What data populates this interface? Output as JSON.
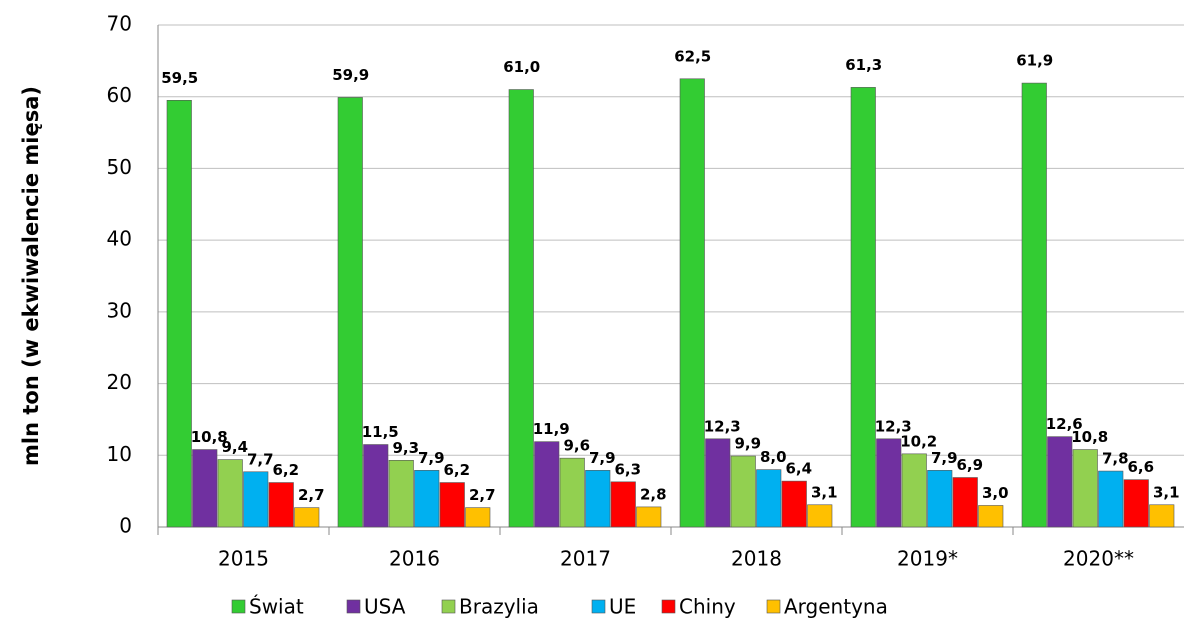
{
  "chart_data": {
    "type": "bar",
    "y_label": "mln ton (w ekwiwalencie mięsa)",
    "categories": [
      "2015",
      "2016",
      "2017",
      "2018",
      "2019*",
      "2020**"
    ],
    "series": [
      {
        "name": "Świat",
        "color": "#33cc33",
        "values": [
          59.5,
          59.9,
          61.0,
          62.5,
          61.3,
          61.9
        ],
        "value_labels": [
          "59,5",
          "59,9",
          "61,0",
          "62,5",
          "61,3",
          "61,9"
        ]
      },
      {
        "name": "USA",
        "color": "#7030a0",
        "values": [
          10.8,
          11.5,
          11.9,
          12.3,
          12.3,
          12.6
        ],
        "value_labels": [
          "10,8",
          "11,5",
          "11,9",
          "12,3",
          "12,3",
          "12,6"
        ]
      },
      {
        "name": "Brazylia",
        "color": "#92d050",
        "values": [
          9.4,
          9.3,
          9.6,
          9.9,
          10.2,
          10.8
        ],
        "value_labels": [
          "9,4",
          "9,3",
          "9,6",
          "9,9",
          "10,2",
          "10,8"
        ]
      },
      {
        "name": "UE",
        "color": "#00b0f0",
        "values": [
          7.7,
          7.9,
          7.9,
          8.0,
          7.9,
          7.8
        ],
        "value_labels": [
          "7,7",
          "7,9",
          "7,9",
          "8,0",
          "7,9",
          "7,8"
        ]
      },
      {
        "name": "Chiny",
        "color": "#ff0000",
        "values": [
          6.2,
          6.2,
          6.3,
          6.4,
          6.9,
          6.6
        ],
        "value_labels": [
          "6,2",
          "6,2",
          "6,3",
          "6,4",
          "6,9",
          "6,6"
        ]
      },
      {
        "name": "Argentyna",
        "color": "#ffc000",
        "values": [
          2.7,
          2.7,
          2.8,
          3.1,
          3.0,
          3.1
        ],
        "value_labels": [
          "2,7",
          "2,7",
          "2,8",
          "3,1",
          "3,0",
          "3,1"
        ]
      }
    ],
    "ylim": [
      0,
      70
    ],
    "yticks": [
      0,
      10,
      20,
      30,
      40,
      50,
      60,
      70
    ],
    "grid": true,
    "legend": "bottom"
  }
}
